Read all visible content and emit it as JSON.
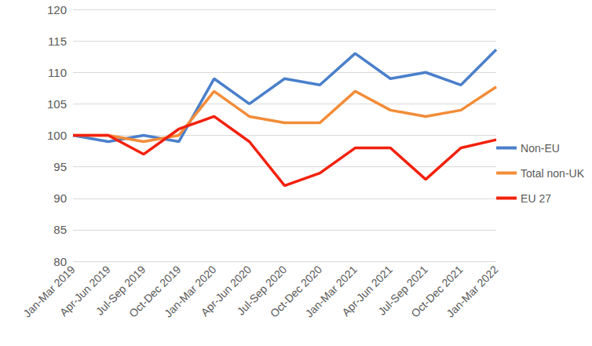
{
  "chart_data": {
    "type": "line",
    "categories": [
      "Jan-Mar 2019",
      "Apr-Jun 2019",
      "Jul-Sep 2019",
      "Oct-Dec 2019",
      "Jan-Mar 2020",
      "Apr-Jun 2020",
      "Jul-Sep 2020",
      "Oct-Dec 2020",
      "Jan-Mar 2021",
      "Apr-Jun 2021",
      "Jul-Sep 2021",
      "Oct-Dec 2021",
      "Jan-Mar 2022"
    ],
    "series": [
      {
        "name": "Non-EU",
        "color": "#4a7fcb",
        "values": [
          100,
          99,
          100,
          99,
          109,
          105,
          109,
          108,
          113,
          109,
          110,
          108,
          113.6
        ]
      },
      {
        "name": "Total non-UK",
        "color": "#f28c38",
        "values": [
          100,
          100,
          99,
          100,
          107,
          103,
          102,
          102,
          107,
          104,
          103,
          104,
          107.7
        ]
      },
      {
        "name": "EU 27",
        "color": "#f2210c",
        "values": [
          100,
          100,
          97,
          101,
          103,
          99,
          92,
          94,
          98,
          98,
          93,
          98,
          99.3
        ]
      }
    ],
    "ylim": [
      80,
      120
    ],
    "yticks": [
      80,
      85,
      90,
      95,
      100,
      105,
      110,
      115,
      120
    ],
    "grid": true,
    "legend": "right"
  }
}
